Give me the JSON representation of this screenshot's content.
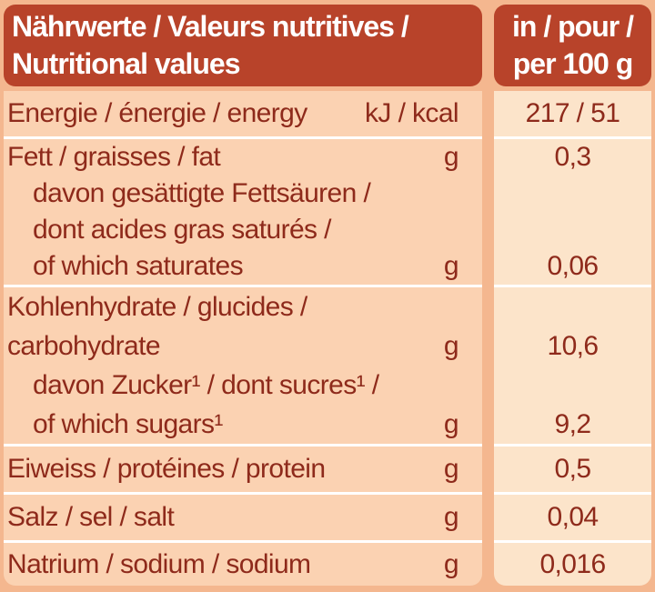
{
  "colors": {
    "header_bg": "#b8432a",
    "header_text": "#ffffff",
    "label_column_bg": "#fbd2b2",
    "value_column_bg": "#fce4ca",
    "outer_bg": "#f4b78f",
    "text": "#8e2a1b",
    "separator": "#ffffff"
  },
  "header": {
    "title_line1": "Nährwerte / Valeurs nutritives /",
    "title_line2": "Nutritional values",
    "per_line1": "in / pour /",
    "per_line2": "per 100 g"
  },
  "rows": [
    {
      "name": "energy",
      "lines": [
        {
          "text": "Energie / énergie / energy",
          "unit": "kJ / kcal",
          "value": "217 / 51"
        }
      ]
    },
    {
      "name": "fat",
      "lines": [
        {
          "text": "Fett / graisses / fat",
          "unit": "g",
          "value": "0,3"
        },
        {
          "text": "davon gesättigte Fettsäuren /",
          "indent": true
        },
        {
          "text": "dont acides gras saturés /",
          "indent": true
        },
        {
          "text": "of which saturates",
          "indent": true,
          "unit": "g",
          "value": "0,06"
        }
      ]
    },
    {
      "name": "carbohydrate",
      "lines": [
        {
          "text": "Kohlenhydrate / glucides /"
        },
        {
          "text": "carbohydrate",
          "unit": "g",
          "value": "10,6"
        },
        {
          "text": "davon Zucker¹ / dont sucres¹ /",
          "indent": true
        },
        {
          "text": "of which sugars¹",
          "indent": true,
          "unit": "g",
          "value": "9,2"
        }
      ]
    },
    {
      "name": "protein",
      "lines": [
        {
          "text": "Eiweiss / protéines / protein",
          "unit": "g",
          "value": "0,5"
        }
      ]
    },
    {
      "name": "salt",
      "lines": [
        {
          "text": "Salz / sel / salt",
          "unit": "g",
          "value": "0,04"
        }
      ]
    },
    {
      "name": "sodium",
      "lines": [
        {
          "text": "Natrium / sodium / sodium",
          "unit": "g",
          "value": "0,016"
        }
      ]
    }
  ]
}
